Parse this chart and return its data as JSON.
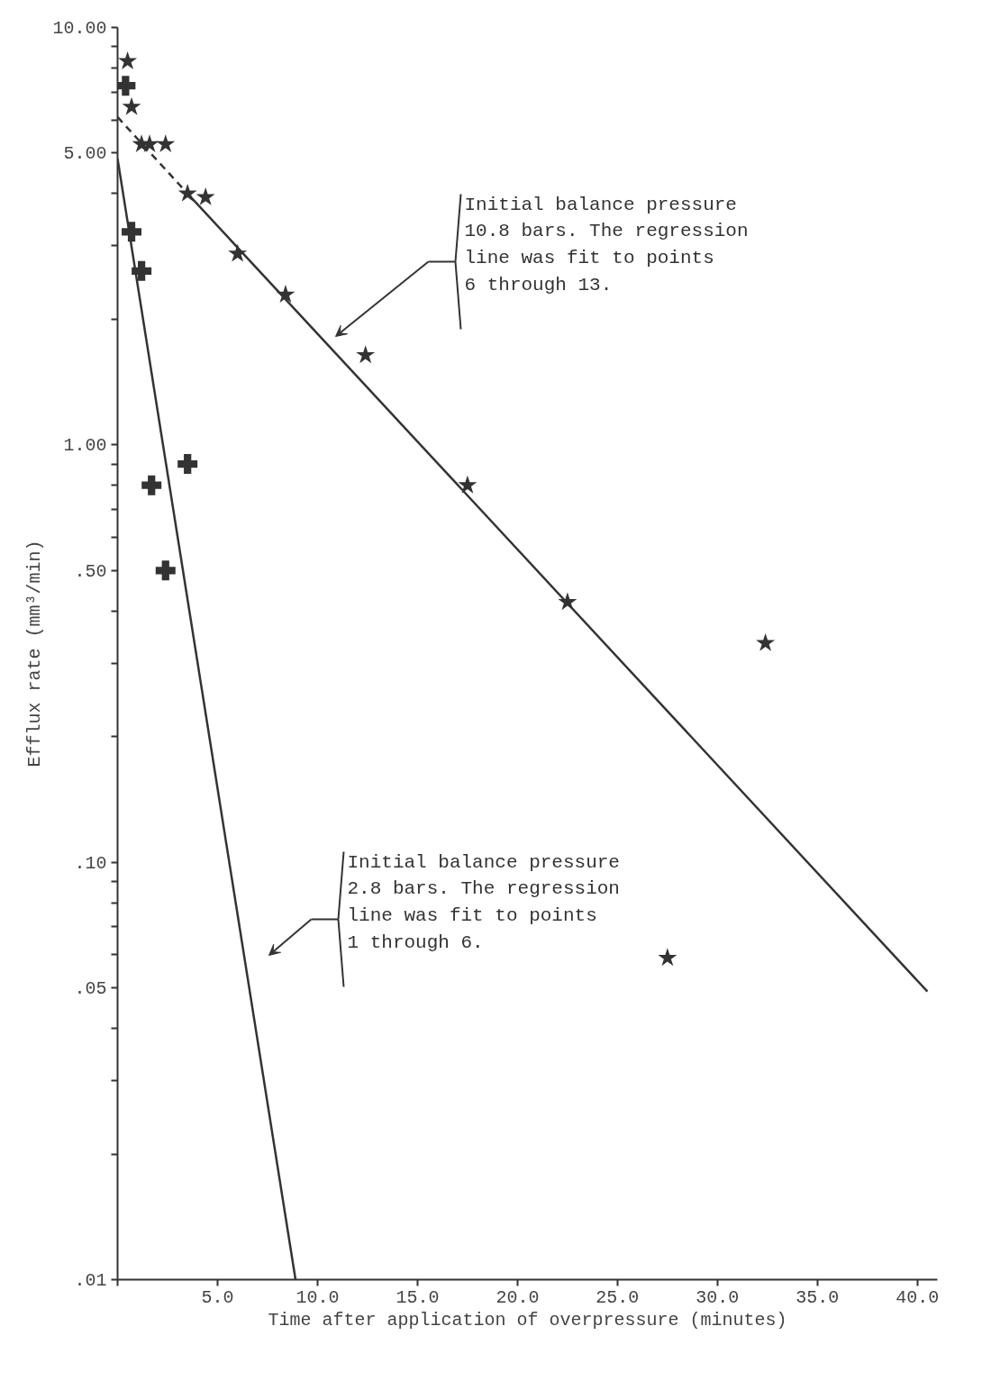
{
  "chart_data": {
    "type": "scatter",
    "xlabel": "Time after application of overpressure (minutes)",
    "ylabel": "Efflux rate (mm³/min)",
    "log": "y",
    "grid": false,
    "xlim": [
      0,
      41
    ],
    "xticks": [
      {
        "value": 0,
        "label": null
      },
      {
        "value": 5,
        "label": "5.0"
      },
      {
        "value": 10,
        "label": "10.0"
      },
      {
        "value": 15,
        "label": "15.0"
      },
      {
        "value": 20,
        "label": "20.0"
      },
      {
        "value": 25,
        "label": "25.0"
      },
      {
        "value": 30,
        "label": "30.0"
      },
      {
        "value": 35,
        "label": "35.0"
      },
      {
        "value": 40,
        "label": "40.0"
      }
    ],
    "ylim": [
      0.01,
      10
    ],
    "yticks": [
      {
        "value": 0.01,
        "label": ".01"
      },
      {
        "value": 0.02,
        "label": null
      },
      {
        "value": 0.03,
        "label": null
      },
      {
        "value": 0.04,
        "label": null
      },
      {
        "value": 0.05,
        "label": ".05"
      },
      {
        "value": 0.06,
        "label": null
      },
      {
        "value": 0.07,
        "label": null
      },
      {
        "value": 0.08,
        "label": null
      },
      {
        "value": 0.09,
        "label": null
      },
      {
        "value": 0.1,
        "label": ".10"
      },
      {
        "value": 0.2,
        "label": null
      },
      {
        "value": 0.3,
        "label": null
      },
      {
        "value": 0.4,
        "label": null
      },
      {
        "value": 0.5,
        "label": ".50"
      },
      {
        "value": 0.6,
        "label": null
      },
      {
        "value": 0.7,
        "label": null
      },
      {
        "value": 0.8,
        "label": null
      },
      {
        "value": 0.9,
        "label": null
      },
      {
        "value": 1,
        "label": "1.00"
      },
      {
        "value": 2,
        "label": null
      },
      {
        "value": 3,
        "label": null
      },
      {
        "value": 4,
        "label": null
      },
      {
        "value": 5,
        "label": "5.00"
      },
      {
        "value": 6,
        "label": null
      },
      {
        "value": 7,
        "label": null
      },
      {
        "value": 8,
        "label": null
      },
      {
        "value": 9,
        "label": null
      },
      {
        "value": 10,
        "label": "10.00"
      }
    ],
    "series": [
      {
        "type": "scatter",
        "marker": "star",
        "color": "#333333",
        "x": [
          0.5,
          0.7,
          1.2,
          1.6,
          2.4,
          3.5,
          4.4,
          6.0,
          8.4,
          12.4,
          17.5,
          22.5,
          27.5,
          32.4
        ],
        "values": [
          8.3,
          6.45,
          5.25,
          5.25,
          5.25,
          4.0,
          3.92,
          2.87,
          2.29,
          1.64,
          0.8,
          0.42,
          0.059,
          0.335
        ]
      },
      {
        "marker": "cross",
        "color": "#333333",
        "x": [
          0.4,
          0.7,
          1.2,
          1.7,
          2.4,
          3.5
        ],
        "values": [
          7.25,
          3.24,
          2.61,
          0.8,
          0.5,
          0.9
        ]
      },
      {
        "type": "line",
        "line_style": "solid",
        "color": "#333333",
        "x": [
          0,
          8.9
        ],
        "values": [
          4.85,
          0.01
        ]
      },
      {
        "type": "line",
        "line_style": "dashed",
        "color": "#333333",
        "x": [
          0,
          3.5
        ],
        "values": [
          6.1,
          4.0
        ]
      },
      {
        "type": "line",
        "line_style": "solid",
        "color": "#333333",
        "x": [
          3.5,
          40.5
        ],
        "values": [
          4.0,
          0.049
        ]
      }
    ],
    "annotations": [
      "Initial balance pressure\n10.8 bars.  The regression\nline was fit to points\n6 through 13.",
      "Initial balance pressure\n2.8 bars.  The regression\nline was fit to points\n1 through 6."
    ]
  }
}
